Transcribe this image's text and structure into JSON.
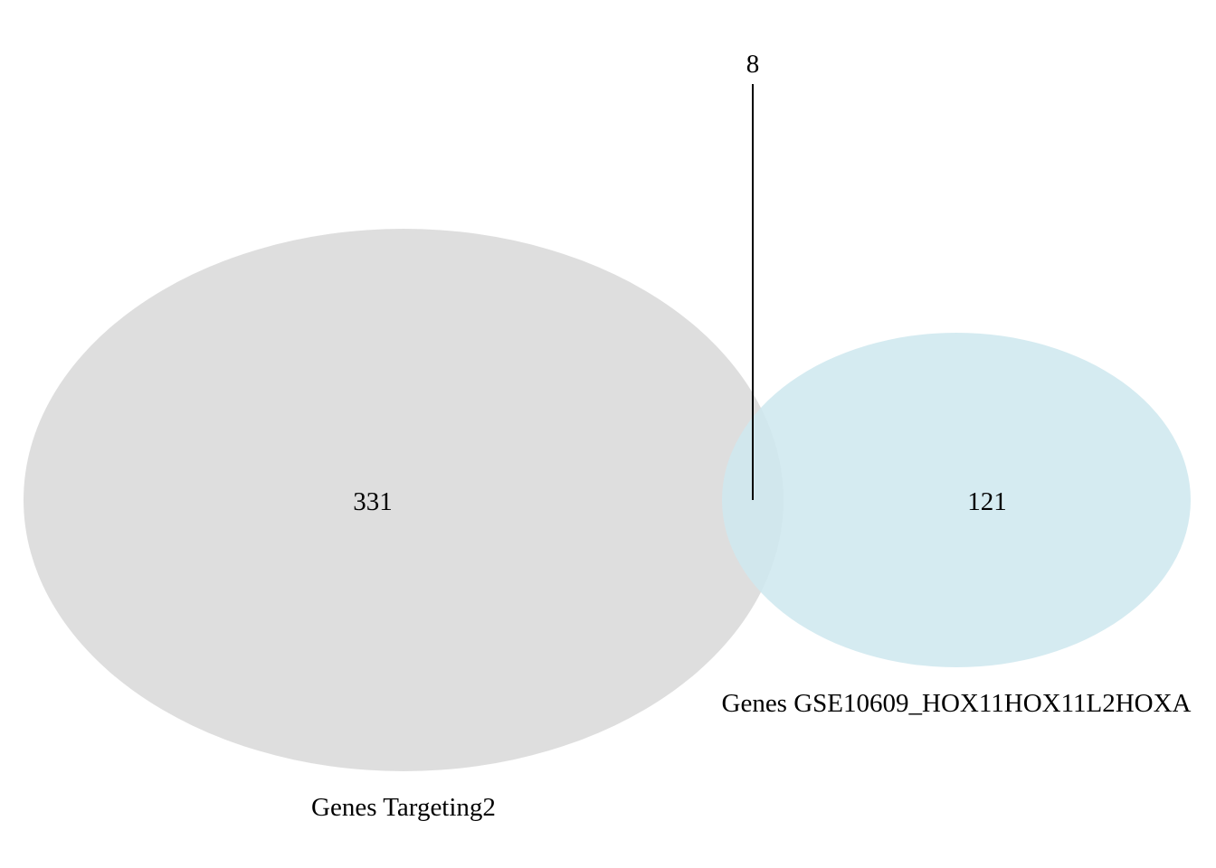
{
  "diagram": {
    "type": "venn",
    "sets": [
      {
        "id": "a",
        "name": "Genes Targeting2",
        "only_count": "331",
        "color": "#d9d9d9",
        "opacity": 0.88
      },
      {
        "id": "b",
        "name": "Genes GSE10609_HOX11HOX11L2HOXA",
        "only_count": "121",
        "color": "#cfe8ef",
        "opacity": 0.88
      }
    ],
    "intersection": {
      "count": "8"
    },
    "background": "#ffffff"
  }
}
